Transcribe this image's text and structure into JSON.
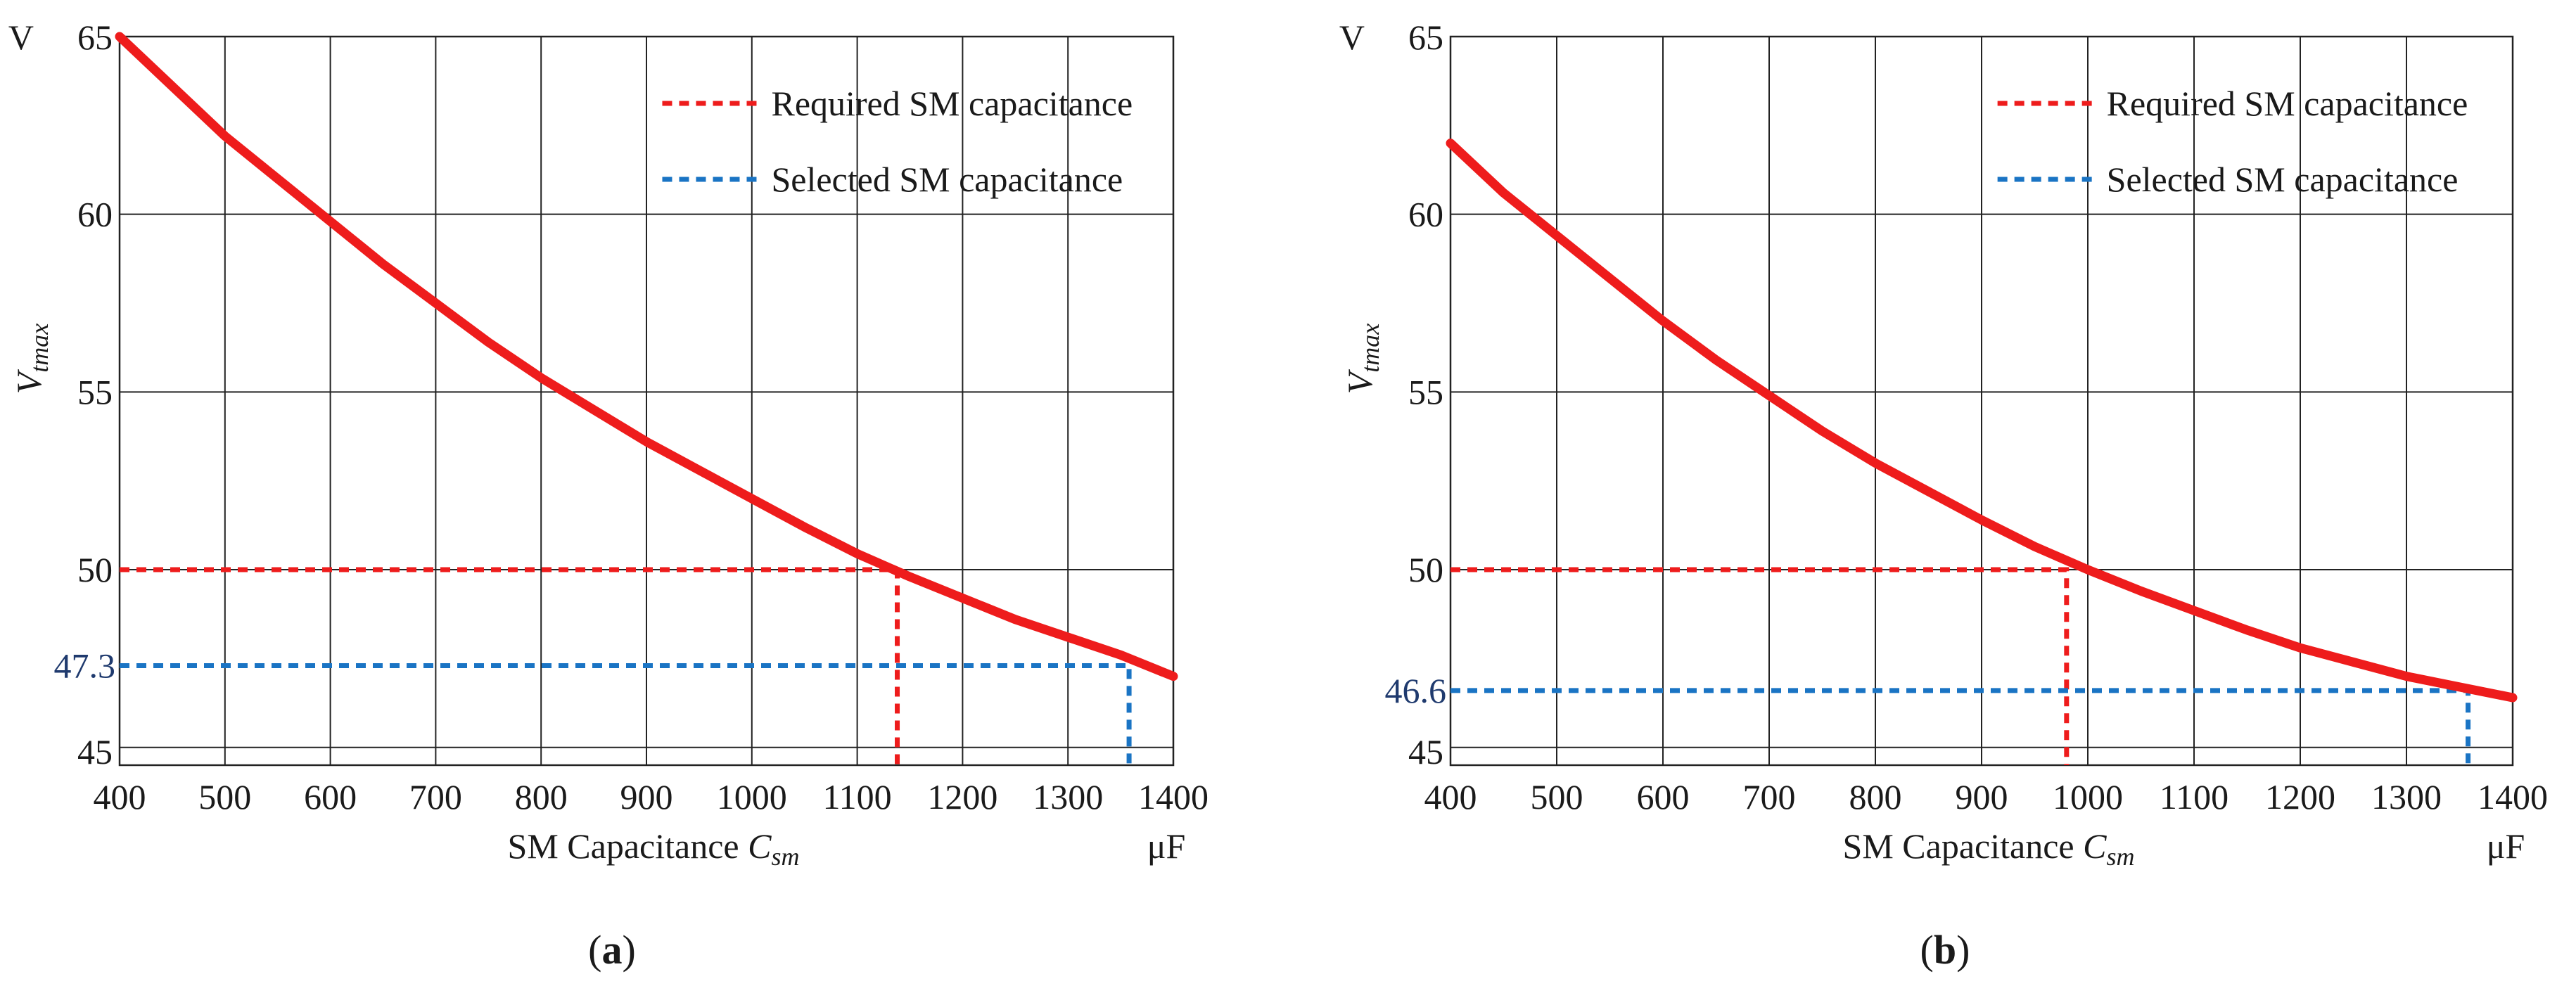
{
  "chart_data": [
    {
      "type": "line",
      "panel_label": "(a)",
      "panel_letter": "a",
      "xlabel": "SM Capacitance",
      "xlabel_symbol": "C",
      "xlabel_subscript": "sm",
      "ylabel_symbol": "V",
      "ylabel_subscript": "tmax",
      "x_unit": "μF",
      "y_unit": "V",
      "xlim": [
        400,
        1400
      ],
      "ylim": [
        44.5,
        65
      ],
      "xticks": [
        400,
        500,
        600,
        700,
        800,
        900,
        1000,
        1100,
        1200,
        1300,
        1400
      ],
      "xtick_labels": [
        "400",
        "500",
        "600",
        "700",
        "800",
        "900",
        "1000",
        "1100",
        "1200",
        "1300",
        "1400"
      ],
      "yticks": [
        45,
        50,
        55,
        60,
        65
      ],
      "ytick_labels": [
        "45",
        "50",
        "55",
        "60",
        "65"
      ],
      "grid": true,
      "legend_position": "top-right",
      "series": [
        {
          "name": "Vtmax",
          "color": "#ee1c1c",
          "x": [
            400,
            450,
            500,
            550,
            600,
            650,
            700,
            750,
            800,
            850,
            900,
            950,
            1000,
            1050,
            1100,
            1150,
            1200,
            1250,
            1300,
            1350,
            1400
          ],
          "y": [
            65.0,
            63.6,
            62.2,
            61.0,
            59.8,
            58.6,
            57.5,
            56.4,
            55.4,
            54.5,
            53.6,
            52.8,
            52.0,
            51.2,
            50.45,
            49.8,
            49.2,
            48.6,
            48.1,
            47.6,
            47.0
          ]
        }
      ],
      "reference_lines": [
        {
          "name": "Required SM capacitance",
          "color": "#ee1c1c",
          "x": 1138,
          "y": 50.0,
          "label": ""
        },
        {
          "name": "Selected SM capacitance",
          "color": "#1a74c4",
          "x": 1358,
          "y": 47.3,
          "label": "47.3"
        }
      ]
    },
    {
      "type": "line",
      "panel_label": "(b)",
      "panel_letter": "b",
      "xlabel": "SM Capacitance",
      "xlabel_symbol": "C",
      "xlabel_subscript": "sm",
      "ylabel_symbol": "V",
      "ylabel_subscript": "tmax",
      "x_unit": "μF",
      "y_unit": "V",
      "xlim": [
        400,
        1400
      ],
      "ylim": [
        44.5,
        65
      ],
      "xticks": [
        400,
        500,
        600,
        700,
        800,
        900,
        1000,
        1100,
        1200,
        1300,
        1400
      ],
      "xtick_labels": [
        "400",
        "500",
        "600",
        "700",
        "800",
        "900",
        "1000",
        "1100",
        "1200",
        "1300",
        "1400"
      ],
      "yticks": [
        45,
        50,
        55,
        60,
        65
      ],
      "ytick_labels": [
        "45",
        "50",
        "55",
        "60",
        "65"
      ],
      "grid": true,
      "legend_position": "top-right",
      "series": [
        {
          "name": "Vtmax",
          "color": "#ee1c1c",
          "x": [
            400,
            450,
            500,
            550,
            600,
            650,
            700,
            750,
            800,
            850,
            900,
            950,
            1000,
            1050,
            1100,
            1150,
            1200,
            1250,
            1300,
            1350,
            1400
          ],
          "y": [
            62.0,
            60.6,
            59.4,
            58.2,
            57.0,
            55.9,
            54.9,
            53.9,
            53.0,
            52.2,
            51.4,
            50.65,
            50.0,
            49.4,
            48.85,
            48.3,
            47.8,
            47.4,
            47.0,
            46.7,
            46.4
          ]
        }
      ],
      "reference_lines": [
        {
          "name": "Required SM capacitance",
          "color": "#ee1c1c",
          "x": 980,
          "y": 50.0,
          "label": ""
        },
        {
          "name": "Selected SM capacitance",
          "color": "#1a74c4",
          "x": 1358,
          "y": 46.6,
          "label": "46.6"
        }
      ]
    }
  ]
}
